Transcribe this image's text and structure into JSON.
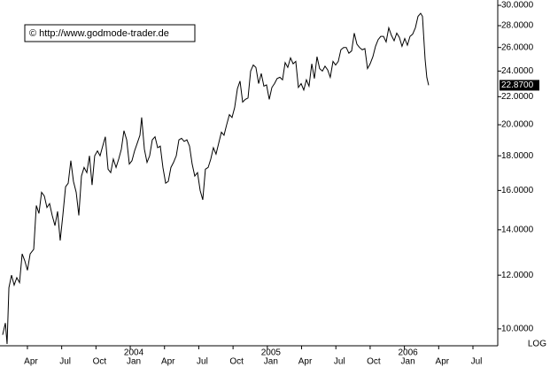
{
  "chart_data": {
    "type": "line",
    "log_scale": true,
    "scale_label": "LOG",
    "copyright": "© http://www.godmode-trader.de",
    "color": "#000000",
    "xlim": [
      0.6,
      44.17
    ],
    "xticks": [
      {
        "value": 3,
        "label": "Apr"
      },
      {
        "value": 6,
        "label": "Jul"
      },
      {
        "value": 9,
        "label": "Oct"
      },
      {
        "value": 12,
        "label": "Jan"
      },
      {
        "value": 15,
        "label": "Apr"
      },
      {
        "value": 18,
        "label": "Jul"
      },
      {
        "value": 21,
        "label": "Oct"
      },
      {
        "value": 24,
        "label": "Jan"
      },
      {
        "value": 27,
        "label": "Apr"
      },
      {
        "value": 30,
        "label": "Jul"
      },
      {
        "value": 33,
        "label": "Oct"
      },
      {
        "value": 36,
        "label": "Jan"
      },
      {
        "value": 39,
        "label": "Apr"
      },
      {
        "value": 42,
        "label": "Jul"
      }
    ],
    "x_year_labels": [
      {
        "value": 12,
        "label": "2004"
      },
      {
        "value": 24,
        "label": "2005"
      },
      {
        "value": 36,
        "label": "2006"
      }
    ],
    "ylim": [
      9.47,
      30.55
    ],
    "yticks": [
      {
        "value": 10,
        "label": "10.0000"
      },
      {
        "value": 12,
        "label": "12.0000"
      },
      {
        "value": 14,
        "label": "14.0000"
      },
      {
        "value": 16,
        "label": "16.0000"
      },
      {
        "value": 18,
        "label": "18.0000"
      },
      {
        "value": 20,
        "label": "20.0000"
      },
      {
        "value": 22,
        "label": "22.0000"
      },
      {
        "value": 24,
        "label": "24.0000"
      },
      {
        "value": 26,
        "label": "26.0000"
      },
      {
        "value": 28,
        "label": "28.0000"
      },
      {
        "value": 30,
        "label": "30.0000"
      }
    ],
    "last_price": {
      "value": 22.87,
      "label": "22.8700"
    },
    "x": [
      0.83,
      1.07,
      1.22,
      1.38,
      1.61,
      1.84,
      2.07,
      2.31,
      2.54,
      2.77,
      3.0,
      3.24,
      3.55,
      3.78,
      4.01,
      4.24,
      4.48,
      4.71,
      4.94,
      5.17,
      5.41,
      5.64,
      5.87,
      6.1,
      6.34,
      6.57,
      6.8,
      7.03,
      7.27,
      7.5,
      7.73,
      7.96,
      8.2,
      8.43,
      8.66,
      8.89,
      9.13,
      9.36,
      9.59,
      9.82,
      10.06,
      10.29,
      10.52,
      10.76,
      10.99,
      11.22,
      11.45,
      11.69,
      11.92,
      12.15,
      12.38,
      12.62,
      12.85,
      13.0,
      13.24,
      13.47,
      13.7,
      13.93,
      14.17,
      14.4,
      14.63,
      14.86,
      15.1,
      15.33,
      15.56,
      15.79,
      16.03,
      16.26,
      16.49,
      16.72,
      16.96,
      17.19,
      17.42,
      17.65,
      17.89,
      18.12,
      18.35,
      18.58,
      18.82,
      19.05,
      19.28,
      19.51,
      19.75,
      19.98,
      20.21,
      20.44,
      20.68,
      20.91,
      21.14,
      21.38,
      21.61,
      21.84,
      22.07,
      22.31,
      22.54,
      22.77,
      23.0,
      23.24,
      23.47,
      23.7,
      23.93,
      24.17,
      24.4,
      24.63,
      24.86,
      25.1,
      25.33,
      25.56,
      25.79,
      26.03,
      26.26,
      26.49,
      26.72,
      26.96,
      27.19,
      27.42,
      27.65,
      27.89,
      28.12,
      28.35,
      28.58,
      28.82,
      29.05,
      29.28,
      29.51,
      29.75,
      29.98,
      30.21,
      30.44,
      30.68,
      30.91,
      31.14,
      31.38,
      31.61,
      31.84,
      32.07,
      32.31,
      32.54,
      32.77,
      33.0,
      33.24,
      33.47,
      33.7,
      33.93,
      34.17,
      34.4,
      34.63,
      34.86,
      35.1,
      35.33,
      35.56,
      35.79,
      36.03,
      36.26,
      36.49,
      36.72,
      36.96,
      37.19,
      37.42,
      37.58,
      37.81,
      37.96,
      38.12
    ],
    "values": [
      9.8,
      10.2,
      9.5,
      11.5,
      12.0,
      11.6,
      11.9,
      11.7,
      12.9,
      12.6,
      12.2,
      12.9,
      13.1,
      15.2,
      14.8,
      15.9,
      15.7,
      15.1,
      15.3,
      14.7,
      14.2,
      14.9,
      13.5,
      14.7,
      16.2,
      16.4,
      17.7,
      16.5,
      15.9,
      14.7,
      16.8,
      17.3,
      17.0,
      18.0,
      16.3,
      18.0,
      18.3,
      18.0,
      18.6,
      19.2,
      17.2,
      17.0,
      17.8,
      17.3,
      17.8,
      18.4,
      19.6,
      19.0,
      17.5,
      17.7,
      18.3,
      18.8,
      19.3,
      20.5,
      18.4,
      17.6,
      18.0,
      19.0,
      19.2,
      18.5,
      18.6,
      17.3,
      16.4,
      16.5,
      17.3,
      17.6,
      18.0,
      19.0,
      19.1,
      18.9,
      19.0,
      18.6,
      17.5,
      16.8,
      17.0,
      16.0,
      15.5,
      17.2,
      17.3,
      17.8,
      18.5,
      18.1,
      18.8,
      19.5,
      19.3,
      20.0,
      20.7,
      20.5,
      21.2,
      22.6,
      23.2,
      21.6,
      21.8,
      21.9,
      24.0,
      24.5,
      24.3,
      23.0,
      23.8,
      22.8,
      22.9,
      21.8,
      22.7,
      23.0,
      23.4,
      23.5,
      23.3,
      24.7,
      24.3,
      25.1,
      24.6,
      24.8,
      22.7,
      23.0,
      22.5,
      23.3,
      22.8,
      24.6,
      23.4,
      25.2,
      24.2,
      24.0,
      24.4,
      24.1,
      23.5,
      24.8,
      24.5,
      24.8,
      25.8,
      26.0,
      26.0,
      25.5,
      25.7,
      27.3,
      26.3,
      26.0,
      25.8,
      25.9,
      24.2,
      24.6,
      25.2,
      26.1,
      26.7,
      27.0,
      27.0,
      26.5,
      27.8,
      27.1,
      26.6,
      27.3,
      26.9,
      26.1,
      26.8,
      26.2,
      27.0,
      27.2,
      27.8,
      28.9,
      29.2,
      28.9,
      25.0,
      23.5,
      22.87
    ]
  }
}
